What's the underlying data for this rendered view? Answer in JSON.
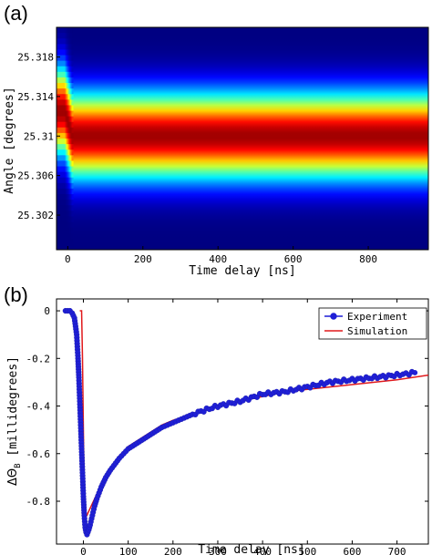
{
  "chart_data": [
    {
      "panel": "(a)",
      "type": "heatmap",
      "xlabel": "Time delay [ns]",
      "ylabel": "Angle [degrees]",
      "xlim": [
        -30,
        960
      ],
      "ylim": [
        25.321,
        25.2985
      ],
      "x_ticks": [
        0,
        200,
        400,
        600,
        800
      ],
      "x_tick_labels": [
        "0",
        "200",
        "400",
        "600",
        "800"
      ],
      "y_ticks": [
        25.302,
        25.306,
        25.31,
        25.314,
        25.318
      ],
      "y_tick_labels": [
        "25.302",
        "25.306",
        "25.31",
        "25.314",
        "25.318"
      ],
      "colormap": "jet",
      "peak_angle_before_zero": 25.3125,
      "peak_angle_after_zero": 25.31,
      "peak_width_deg": 0.0042
    },
    {
      "panel": "(b)",
      "type": "line",
      "xlabel": "Time delay [ns]",
      "ylabel": "ΔΘ_B [millidegrees]",
      "xlim": [
        -60,
        770
      ],
      "ylim": [
        -0.98,
        0.05
      ],
      "x_ticks": [
        0,
        100,
        200,
        300,
        400,
        500,
        600,
        700
      ],
      "x_tick_labels": [
        "0",
        "100",
        "200",
        "300",
        "400",
        "500",
        "600",
        "700"
      ],
      "y_ticks": [
        0,
        -0.2,
        -0.4,
        -0.6,
        -0.8
      ],
      "y_tick_labels": [
        "0",
        "-0.2",
        "-0.4",
        "-0.6",
        "-0.8"
      ],
      "legend_position": "top-right",
      "series": [
        {
          "name": "Experiment",
          "color": "#1f1fd6",
          "marker": "circle",
          "x": [
            -40,
            -35,
            -30,
            -25,
            -20,
            -15,
            -12,
            -10,
            -8,
            -6,
            -4,
            -2,
            0,
            2,
            4,
            6,
            8,
            10,
            12,
            15,
            20,
            25,
            30,
            40,
            50,
            60,
            80,
            100,
            125,
            150,
            175,
            200,
            250,
            300,
            350,
            400,
            450,
            500,
            550,
            600,
            650,
            700,
            740
          ],
          "y": [
            0,
            0,
            0,
            -0.01,
            -0.03,
            -0.1,
            -0.2,
            -0.28,
            -0.38,
            -0.48,
            -0.58,
            -0.68,
            -0.78,
            -0.86,
            -0.91,
            -0.93,
            -0.94,
            -0.93,
            -0.92,
            -0.9,
            -0.86,
            -0.82,
            -0.79,
            -0.74,
            -0.7,
            -0.67,
            -0.62,
            -0.58,
            -0.55,
            -0.52,
            -0.49,
            -0.47,
            -0.43,
            -0.4,
            -0.38,
            -0.35,
            -0.34,
            -0.32,
            -0.3,
            -0.29,
            -0.28,
            -0.27,
            -0.26
          ]
        },
        {
          "name": "Simulation",
          "color": "#e0191c",
          "x": [
            -8,
            -4,
            -2,
            0,
            2,
            4,
            6,
            8,
            10,
            15,
            20,
            30,
            40,
            50,
            60,
            80,
            100,
            125,
            150,
            175,
            200,
            250,
            300,
            350,
            400,
            450,
            500,
            550,
            600,
            650,
            700,
            770
          ],
          "y": [
            0,
            0,
            -0.2,
            -0.5,
            -0.8,
            -0.86,
            -0.86,
            -0.86,
            -0.85,
            -0.83,
            -0.81,
            -0.77,
            -0.73,
            -0.69,
            -0.66,
            -0.61,
            -0.57,
            -0.54,
            -0.51,
            -0.48,
            -0.46,
            -0.43,
            -0.4,
            -0.38,
            -0.36,
            -0.34,
            -0.33,
            -0.32,
            -0.31,
            -0.3,
            -0.29,
            -0.27
          ]
        }
      ]
    }
  ]
}
